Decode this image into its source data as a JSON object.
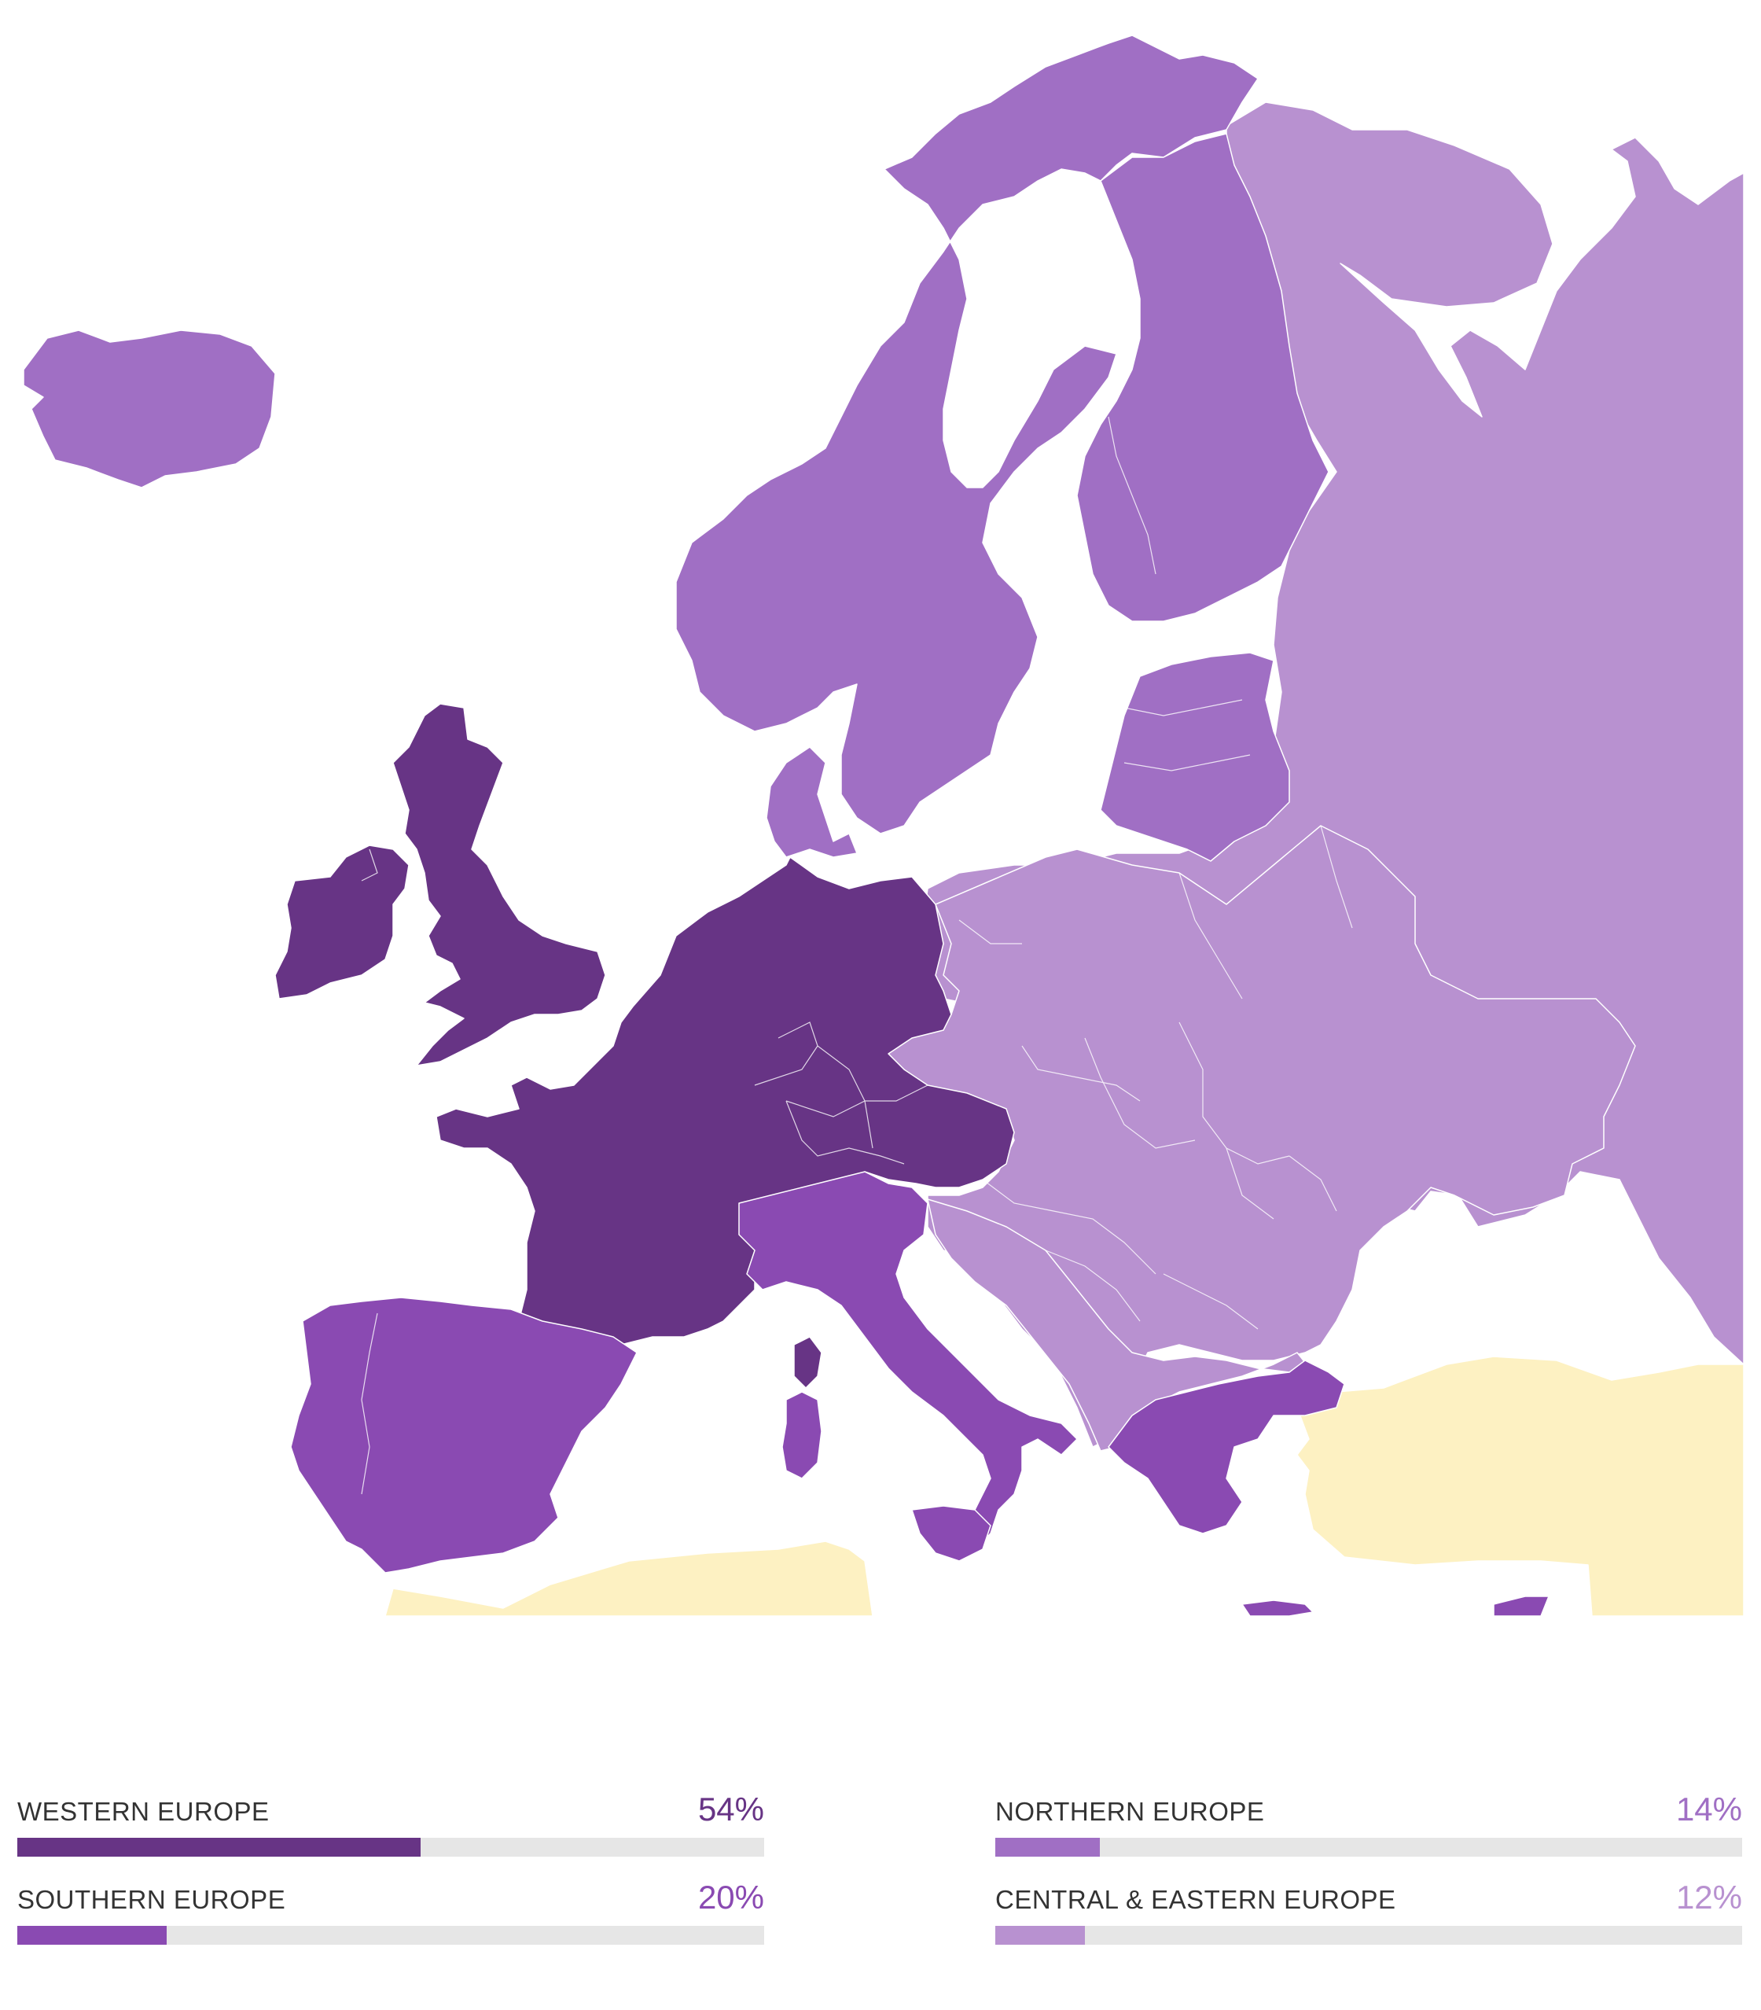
{
  "legend": [
    {
      "id": "western",
      "label": "WESTERN EUROPE",
      "percent_label": "54%",
      "value": 54,
      "color": "#673485"
    },
    {
      "id": "southern",
      "label": "SOUTHERN EUROPE",
      "percent_label": "20%",
      "value": 20,
      "color": "#8a4ab2"
    },
    {
      "id": "northern",
      "label": "NORTHERN EUROPE",
      "percent_label": "14%",
      "value": 14,
      "color": "#a06fc4"
    },
    {
      "id": "ceeu",
      "label": "CENTRAL & EASTERN EUROPE",
      "percent_label": "12%",
      "value": 12,
      "color": "#b891d0"
    }
  ],
  "colors": {
    "western": "#673485",
    "southern": "#8a4ab2",
    "northern": "#a06fc4",
    "ceeu": "#b891d0",
    "other": "#fdf1c2",
    "track": "#e6e6e6"
  }
}
